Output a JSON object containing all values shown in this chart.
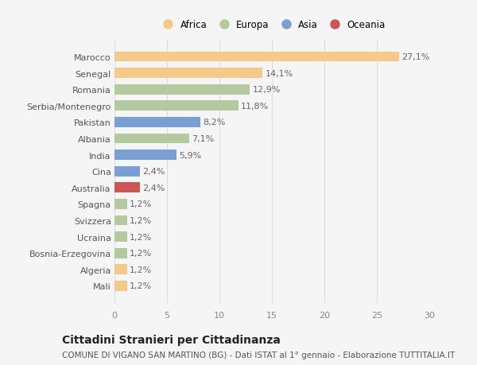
{
  "categories": [
    "Mali",
    "Algeria",
    "Bosnia-Erzegovina",
    "Ucraina",
    "Svizzera",
    "Spagna",
    "Australia",
    "Cina",
    "India",
    "Albania",
    "Pakistan",
    "Serbia/Montenegro",
    "Romania",
    "Senegal",
    "Marocco"
  ],
  "values": [
    1.2,
    1.2,
    1.2,
    1.2,
    1.2,
    1.2,
    2.4,
    2.4,
    5.9,
    7.1,
    8.2,
    11.8,
    12.9,
    14.1,
    27.1
  ],
  "labels": [
    "1,2%",
    "1,2%",
    "1,2%",
    "1,2%",
    "1,2%",
    "1,2%",
    "2,4%",
    "2,4%",
    "5,9%",
    "7,1%",
    "8,2%",
    "11,8%",
    "12,9%",
    "14,1%",
    "27,1%"
  ],
  "colors": [
    "#f5c98a",
    "#f5c98a",
    "#b5c9a0",
    "#b5c9a0",
    "#b5c9a0",
    "#b5c9a0",
    "#cc5555",
    "#7a9fd4",
    "#7a9fd4",
    "#b5c9a0",
    "#7a9fd4",
    "#b5c9a0",
    "#b5c9a0",
    "#f5c98a",
    "#f5c98a"
  ],
  "legend_labels": [
    "Africa",
    "Europa",
    "Asia",
    "Oceania"
  ],
  "legend_colors": [
    "#f5c98a",
    "#b5c9a0",
    "#7a9fd4",
    "#cc5555"
  ],
  "title": "Cittadini Stranieri per Cittadinanza",
  "subtitle": "COMUNE DI VIGANO SAN MARTINO (BG) - Dati ISTAT al 1° gennaio - Elaborazione TUTTITALIA.IT",
  "xlim": [
    0,
    30
  ],
  "xticks": [
    0,
    5,
    10,
    15,
    20,
    25,
    30
  ],
  "background_color": "#f5f5f5",
  "plot_bg_color": "#f5f5f5",
  "grid_color": "#dddddd",
  "bar_height": 0.62,
  "label_fontsize": 8,
  "tick_fontsize": 8,
  "title_fontsize": 10,
  "subtitle_fontsize": 7.5
}
